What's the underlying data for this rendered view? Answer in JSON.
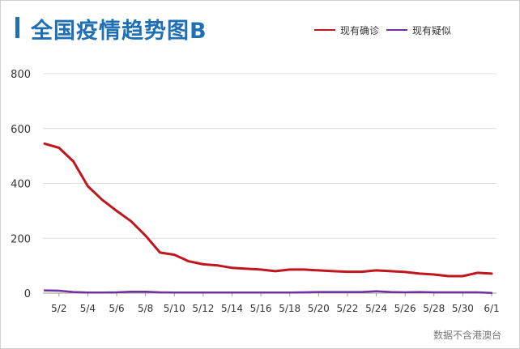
{
  "title": "全国疫情趋势图B",
  "source_note": "数据不含港澳台",
  "chart_data": {
    "type": "line",
    "title": "全国疫情趋势图B",
    "xlabel": "",
    "ylabel": "",
    "ylim": [
      0,
      800
    ],
    "y_ticks": [
      0,
      200,
      400,
      600,
      800
    ],
    "grid": true,
    "legend_position": "top-right",
    "x": [
      "5/1",
      "5/2",
      "5/3",
      "5/4",
      "5/5",
      "5/6",
      "5/7",
      "5/8",
      "5/9",
      "5/10",
      "5/11",
      "5/12",
      "5/13",
      "5/14",
      "5/15",
      "5/16",
      "5/17",
      "5/18",
      "5/19",
      "5/20",
      "5/21",
      "5/22",
      "5/23",
      "5/24",
      "5/25",
      "5/26",
      "5/27",
      "5/28",
      "5/29",
      "5/30",
      "5/31",
      "6/1"
    ],
    "x_tick_labels": [
      "5/2",
      "5/4",
      "5/6",
      "5/8",
      "5/10",
      "5/12",
      "5/14",
      "5/16",
      "5/18",
      "5/20",
      "5/22",
      "5/24",
      "5/26",
      "5/28",
      "5/30",
      "6/1"
    ],
    "series": [
      {
        "name": "现有确诊",
        "color": "#c0161d",
        "values": [
          545,
          530,
          480,
          390,
          340,
          300,
          262,
          210,
          148,
          140,
          116,
          105,
          101,
          92,
          89,
          86,
          80,
          86,
          86,
          83,
          80,
          78,
          78,
          83,
          80,
          77,
          71,
          68,
          62,
          62,
          74,
          71
        ]
      },
      {
        "name": "现有疑似",
        "color": "#7030a0",
        "values": [
          10,
          9,
          4,
          2,
          2,
          3,
          5,
          5,
          3,
          2,
          2,
          2,
          2,
          2,
          2,
          2,
          2,
          2,
          3,
          4,
          4,
          4,
          4,
          7,
          4,
          3,
          4,
          3,
          3,
          3,
          3,
          1
        ]
      }
    ]
  }
}
